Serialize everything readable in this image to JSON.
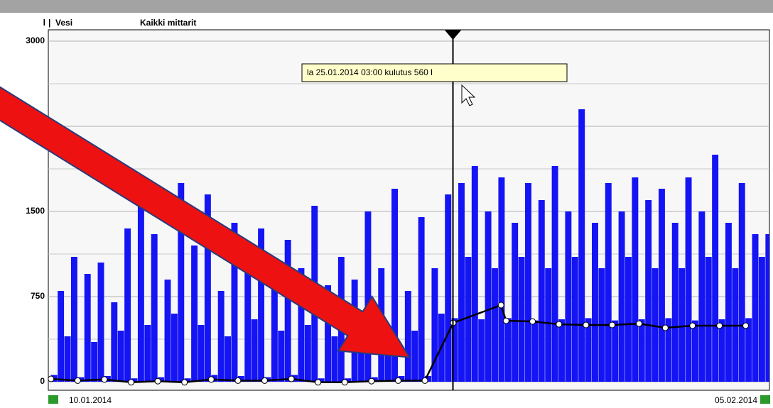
{
  "chart_data": {
    "type": "bar",
    "unit": "l",
    "title": "Vesi",
    "subtitle": "Kaikki mittarit",
    "tooltip": "la 25.01.2014 03:00 kulutus 560 l",
    "start_label": "10.01.2014",
    "end_label": "05.02.2014",
    "cursor_x": 15.05,
    "xlim": [
      -0.1,
      26.9
    ],
    "ylim": [
      0,
      3000
    ],
    "yticks": [
      0,
      750,
      1500,
      2250,
      3000
    ],
    "ygrid": [
      375,
      1125,
      1875,
      2625
    ],
    "grid": true,
    "bars": {
      "color": "#1414f5",
      "x": [
        0,
        0.25,
        0.5,
        0.75,
        1,
        1.25,
        1.5,
        1.75,
        2,
        2.25,
        2.5,
        2.75,
        3,
        3.25,
        3.5,
        3.75,
        4,
        4.25,
        4.5,
        4.75,
        5,
        5.25,
        5.5,
        5.75,
        6,
        6.25,
        6.5,
        6.75,
        7,
        7.25,
        7.5,
        7.75,
        8,
        8.25,
        8.5,
        8.75,
        9,
        9.25,
        9.5,
        9.75,
        10,
        10.25,
        10.5,
        10.75,
        11,
        11.25,
        11.5,
        11.75,
        12,
        12.25,
        12.5,
        12.75,
        13,
        13.25,
        13.5,
        13.75,
        14,
        14.25,
        14.5,
        14.75,
        15,
        15.25,
        15.5,
        15.75,
        16,
        16.25,
        16.5,
        16.75,
        17,
        17.25,
        17.5,
        17.75,
        18,
        18.25,
        18.5,
        18.75,
        19,
        19.25,
        19.5,
        19.75,
        20,
        20.25,
        20.5,
        20.75,
        21,
        21.25,
        21.5,
        21.75,
        22,
        22.25,
        22.5,
        22.75,
        23,
        23.25,
        23.5,
        23.75,
        24,
        24.25,
        24.5,
        24.75,
        25,
        25.25,
        25.5,
        25.75,
        26,
        26.25,
        26.5,
        26.75
      ],
      "values": [
        60,
        800,
        400,
        1100,
        40,
        950,
        350,
        1050,
        50,
        700,
        450,
        1350,
        30,
        1550,
        500,
        1300,
        40,
        900,
        600,
        1750,
        30,
        1200,
        500,
        1650,
        60,
        800,
        400,
        1400,
        50,
        1100,
        550,
        1350,
        40,
        900,
        450,
        1250,
        60,
        1000,
        500,
        1550,
        30,
        850,
        400,
        1100,
        30,
        900,
        500,
        1500,
        40,
        1000,
        450,
        1700,
        50,
        800,
        450,
        1450,
        50,
        1000,
        600,
        1650,
        560,
        1750,
        1100,
        1900,
        550,
        1500,
        1000,
        1800,
        560,
        1400,
        1100,
        1750,
        540,
        1600,
        1000,
        1900,
        550,
        1500,
        1100,
        2400,
        560,
        1400,
        1000,
        1750,
        540,
        1500,
        1100,
        1800,
        550,
        1600,
        1000,
        1700,
        560,
        1400,
        1000,
        1800,
        540,
        1500,
        1100,
        2000,
        550,
        1400,
        1000,
        1750,
        560,
        1300,
        1100,
        1300
      ]
    },
    "line": {
      "color": "#000000",
      "x": [
        0,
        1,
        2,
        3,
        4,
        5,
        6,
        7,
        8,
        9,
        10,
        11,
        12,
        13,
        14,
        15.06,
        16.85,
        17.04,
        18.03,
        19.02,
        20.03,
        21.01,
        22.02,
        23,
        24.02,
        25.03,
        26.01
      ],
      "values": [
        25,
        10,
        20,
        -5,
        5,
        -5,
        20,
        10,
        10,
        25,
        -5,
        -5,
        5,
        10,
        10,
        519,
        675,
        537,
        531,
        506,
        500,
        500,
        512,
        475,
        494,
        494,
        494
      ]
    }
  }
}
